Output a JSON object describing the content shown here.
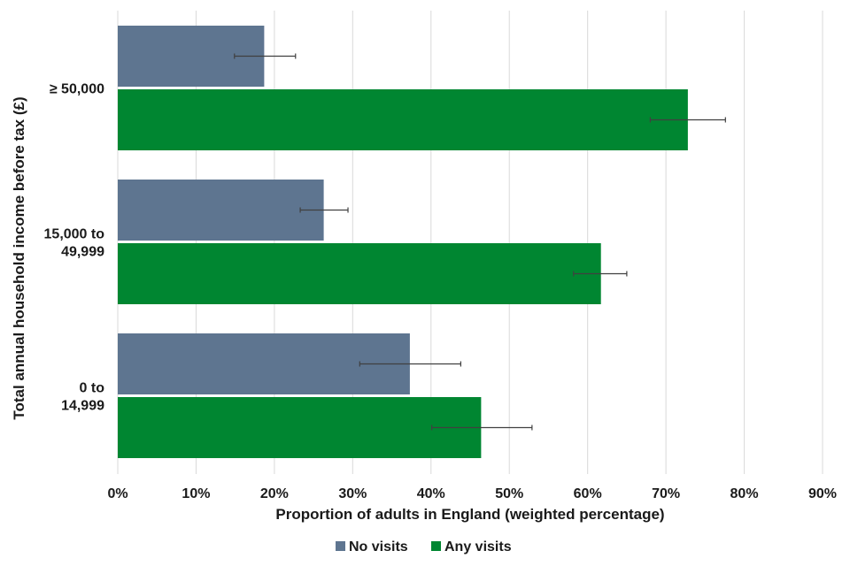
{
  "chart_data": {
    "type": "bar",
    "orientation": "horizontal",
    "xlabel": "Proportion of adults in England (weighted percentage)",
    "ylabel": "Total annual household income before tax (£)",
    "xlim": [
      0,
      90
    ],
    "x_ticks": [
      "0%",
      "10%",
      "20%",
      "30%",
      "40%",
      "50%",
      "60%",
      "70%",
      "80%",
      "90%"
    ],
    "grid": "vertical",
    "legend_position": "bottom",
    "categories": [
      [
        "≥ 50,000"
      ],
      [
        "15,000 to",
        "49,999"
      ],
      [
        "0 to",
        "14,999"
      ]
    ],
    "series": [
      {
        "name": "No visits",
        "color": "#5e7590",
        "values": [
          18.7,
          26.3,
          37.3
        ],
        "error_low": [
          14.9,
          23.3,
          30.9
        ],
        "error_high": [
          22.7,
          29.4,
          43.8
        ]
      },
      {
        "name": "Any visits",
        "color": "#008631",
        "values": [
          72.8,
          61.7,
          46.4
        ],
        "error_low": [
          68.0,
          58.2,
          40.1
        ],
        "error_high": [
          77.6,
          65.0,
          52.9
        ]
      }
    ]
  }
}
